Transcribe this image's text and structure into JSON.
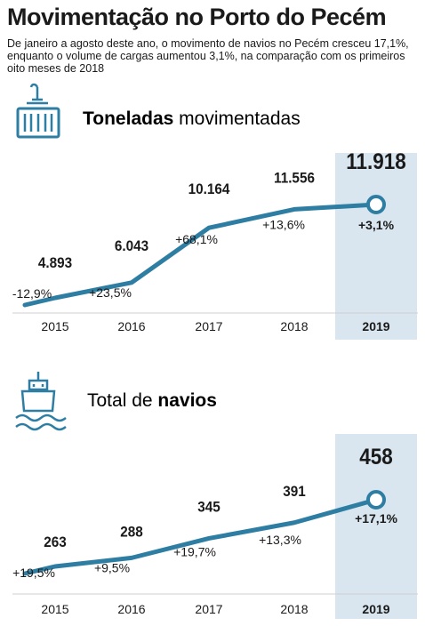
{
  "header": {
    "title": "Movimentação no Porto do Pecém",
    "subtitle": "De janeiro a agosto deste ano, o movimento de navios no Pecém cresceu 17,1%, enquanto o volume de cargas aumentou 3,1%, na comparação com os primeiros oito meses de 2018"
  },
  "sections": [
    {
      "title_bold": "Toneladas",
      "title_rest": " movimentadas",
      "icon": "container-crane-icon"
    },
    {
      "title_pre": "Total de ",
      "title_bold": "navios",
      "icon": "ship-icon"
    }
  ],
  "colors": {
    "line": "#2e7ea3",
    "highlight": "#d9e6ef",
    "text": "#1a1a1a"
  },
  "chart_data": [
    {
      "type": "line",
      "categories": [
        "2015",
        "2016",
        "2017",
        "2018",
        "2019"
      ],
      "values": [
        4893,
        6043,
        10164,
        11556,
        11918
      ],
      "value_labels": [
        "4.893",
        "6.043",
        "10.164",
        "11.556",
        "11.918"
      ],
      "change_labels": [
        "-12,9%",
        "+23,5%",
        "+68,1%",
        "+13,6%",
        "+3,1%"
      ],
      "highlight_category": "2019"
    },
    {
      "type": "line",
      "categories": [
        "2015",
        "2016",
        "2017",
        "2018",
        "2019"
      ],
      "values": [
        263,
        288,
        345,
        391,
        458
      ],
      "value_labels": [
        "263",
        "288",
        "345",
        "391",
        "458"
      ],
      "change_labels": [
        "+19,5%",
        "+9,5%",
        "+19,7%",
        "+13,3%",
        "+17,1%"
      ],
      "highlight_category": "2019"
    }
  ]
}
